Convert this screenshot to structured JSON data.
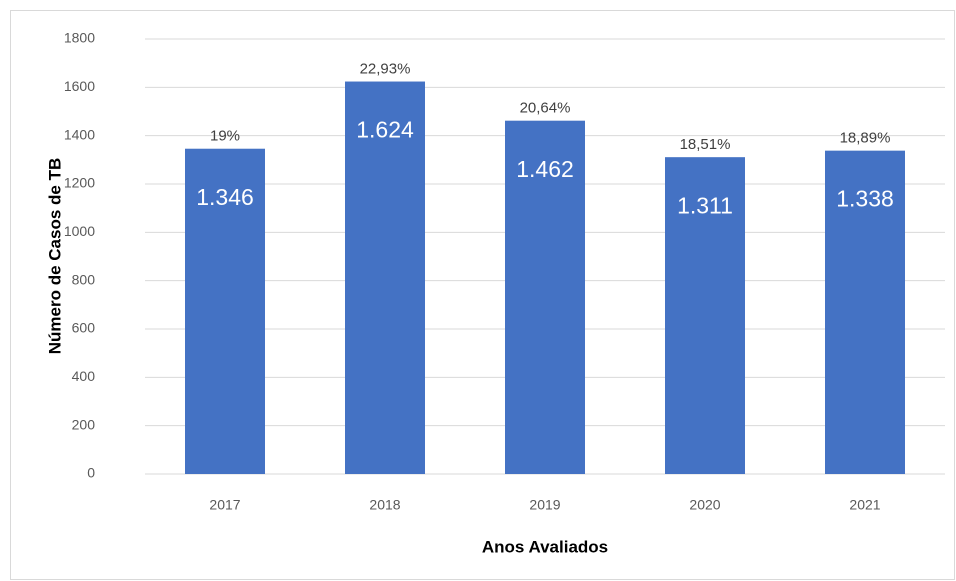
{
  "chart_data": {
    "type": "bar",
    "categories": [
      "2017",
      "2018",
      "2019",
      "2020",
      "2021"
    ],
    "values": [
      1346,
      1624,
      1462,
      1311,
      1338
    ],
    "value_labels": [
      "1.346",
      "1.624",
      "1.462",
      "1.311",
      "1.338"
    ],
    "annotations": [
      "19%",
      "22,93%",
      "20,64%",
      "18,51%",
      "18,89%"
    ],
    "color": "#4472c4",
    "xlabel": "Anos Avaliados",
    "ylabel": "Número de Casos de TB",
    "ylim": [
      0,
      1800
    ],
    "yticks": [
      0,
      200,
      400,
      600,
      800,
      1000,
      1200,
      1400,
      1600,
      1800
    ],
    "grid": true
  }
}
